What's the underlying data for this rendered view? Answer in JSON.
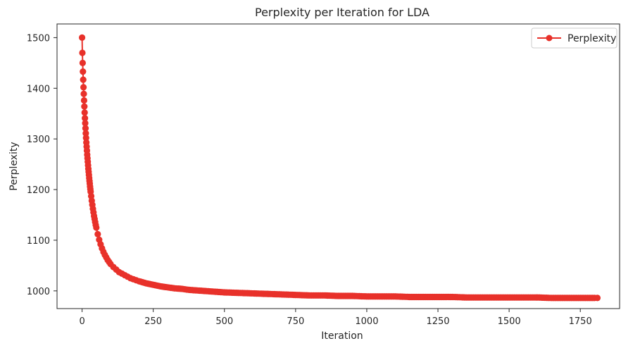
{
  "chart_data": {
    "type": "line",
    "title": "Perplexity per Iteration for LDA",
    "xlabel": "Iteration",
    "ylabel": "Perplexity",
    "xlim": [
      -88,
      1888
    ],
    "ylim": [
      965,
      1527
    ],
    "xticks": [
      0,
      250,
      500,
      750,
      1000,
      1250,
      1500,
      1750
    ],
    "yticks": [
      1000,
      1100,
      1200,
      1300,
      1400,
      1500
    ],
    "grid": false,
    "legend_position": "top-right",
    "marker": "circle",
    "series": [
      {
        "name": "Perplexity",
        "color": "#e8312a",
        "x": [
          0,
          1,
          2,
          3,
          4,
          5,
          6,
          7,
          8,
          9,
          10,
          11,
          12,
          13,
          14,
          15,
          16,
          17,
          18,
          19,
          20,
          21,
          22,
          23,
          24,
          25,
          26,
          27,
          28,
          29,
          30,
          32,
          34,
          36,
          38,
          40,
          42,
          44,
          46,
          48,
          50,
          55,
          60,
          65,
          70,
          75,
          80,
          85,
          90,
          95,
          100,
          110,
          120,
          130,
          140,
          150,
          160,
          170,
          180,
          190,
          200,
          225,
          250,
          275,
          300,
          325,
          350,
          375,
          400,
          450,
          500,
          550,
          600,
          650,
          700,
          750,
          800,
          850,
          900,
          950,
          1000,
          1050,
          1100,
          1150,
          1200,
          1250,
          1300,
          1350,
          1400,
          1450,
          1500,
          1550,
          1600,
          1650,
          1700,
          1750,
          1800,
          1810
        ],
        "y": [
          1500,
          1470,
          1450,
          1433,
          1417,
          1402,
          1389,
          1376,
          1364,
          1352,
          1341,
          1331,
          1321,
          1311,
          1302,
          1293,
          1285,
          1277,
          1269,
          1262,
          1255,
          1248,
          1241,
          1235,
          1229,
          1223,
          1217,
          1212,
          1206,
          1201,
          1196,
          1187,
          1178,
          1170,
          1162,
          1155,
          1148,
          1142,
          1136,
          1130,
          1125,
          1112,
          1101,
          1092,
          1084,
          1077,
          1071,
          1066,
          1061,
          1057,
          1053,
          1047,
          1042,
          1037,
          1034,
          1031,
          1028,
          1025,
          1023,
          1021,
          1019,
          1015,
          1012,
          1009,
          1007,
          1005,
          1004,
          1002,
          1001,
          999,
          997,
          996,
          995,
          994,
          993,
          992,
          991,
          991,
          990,
          990,
          989,
          989,
          989,
          988,
          988,
          988,
          988,
          987,
          987,
          987,
          987,
          987,
          987,
          986,
          986,
          986,
          986,
          986
        ]
      }
    ]
  }
}
